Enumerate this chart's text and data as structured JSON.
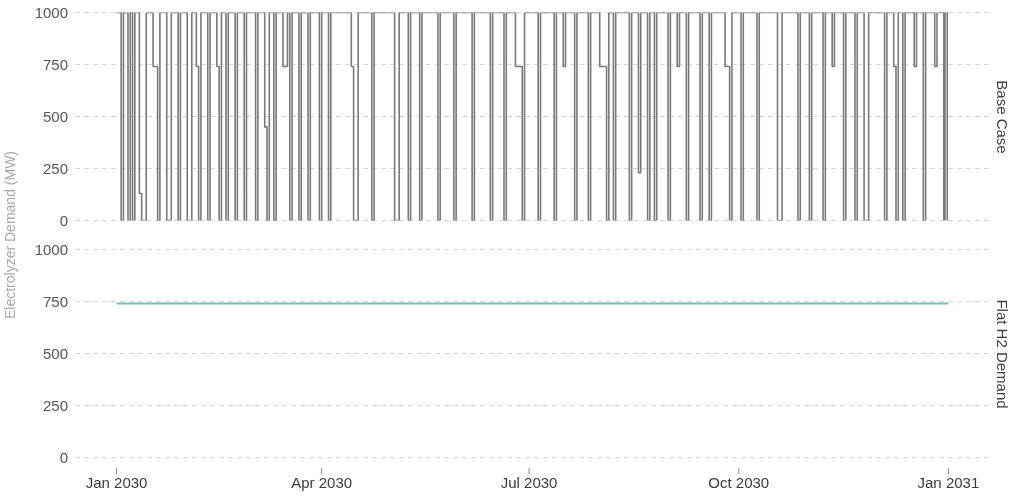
{
  "chart_data": [
    {
      "type": "step",
      "title": "Base Case",
      "ylabel": "Electrolyzer Demand (MW)",
      "color": "#7a7a7a",
      "x": [
        "2030-01-01",
        "2030-01-03",
        "2030-01-04",
        "2030-01-06",
        "2030-01-07",
        "2030-01-08",
        "2030-01-09",
        "2030-01-11",
        "2030-01-12",
        "2030-01-14",
        "2030-01-17",
        "2030-01-19",
        "2030-01-20",
        "2030-01-23",
        "2030-01-25",
        "2030-01-28",
        "2030-01-29",
        "2030-02-01",
        "2030-02-03",
        "2030-02-05",
        "2030-02-06",
        "2030-02-07",
        "2030-02-10",
        "2030-02-11",
        "2030-02-14",
        "2030-02-15",
        "2030-02-16",
        "2030-02-18",
        "2030-02-19",
        "2030-02-22",
        "2030-02-23",
        "2030-02-26",
        "2030-02-27",
        "2030-03-03",
        "2030-03-04",
        "2030-03-07",
        "2030-03-08",
        "2030-03-09",
        "2030-03-11",
        "2030-03-12",
        "2030-03-15",
        "2030-03-17",
        "2030-03-18",
        "2030-03-19",
        "2030-03-22",
        "2030-03-23",
        "2030-03-26",
        "2030-03-27",
        "2030-03-31",
        "2030-04-01",
        "2030-04-04",
        "2030-04-05",
        "2030-04-14",
        "2030-04-15",
        "2030-04-17",
        "2030-04-23",
        "2030-04-24",
        "2030-05-03",
        "2030-05-05",
        "2030-05-09",
        "2030-05-10",
        "2030-05-14",
        "2030-05-15",
        "2030-05-22",
        "2030-05-23",
        "2030-05-29",
        "2030-05-30",
        "2030-06-06",
        "2030-06-07",
        "2030-06-14",
        "2030-06-15",
        "2030-06-20",
        "2030-06-21",
        "2030-06-25",
        "2030-06-28",
        "2030-06-29",
        "2030-07-05",
        "2030-07-06",
        "2030-07-12",
        "2030-07-13",
        "2030-07-16",
        "2030-07-17",
        "2030-07-21",
        "2030-07-22",
        "2030-07-27",
        "2030-07-28",
        "2030-08-01",
        "2030-08-04",
        "2030-08-05",
        "2030-08-07",
        "2030-08-08",
        "2030-08-14",
        "2030-08-15",
        "2030-08-18",
        "2030-08-19",
        "2030-08-22",
        "2030-08-23",
        "2030-08-25",
        "2030-08-26",
        "2030-08-31",
        "2030-09-01",
        "2030-09-04",
        "2030-09-05",
        "2030-09-08",
        "2030-09-09",
        "2030-09-14",
        "2030-09-15",
        "2030-09-18",
        "2030-09-19",
        "2030-09-25",
        "2030-09-27",
        "2030-09-28",
        "2030-10-02",
        "2030-10-03",
        "2030-10-09",
        "2030-10-10",
        "2030-10-18",
        "2030-10-20",
        "2030-10-27",
        "2030-10-28",
        "2030-11-01",
        "2030-11-02",
        "2030-11-07",
        "2030-11-08",
        "2030-11-11",
        "2030-11-12",
        "2030-11-16",
        "2030-11-17",
        "2030-11-21",
        "2030-11-22",
        "2030-11-25",
        "2030-11-27",
        "2030-12-04",
        "2030-12-05",
        "2030-12-08",
        "2030-12-09",
        "2030-12-10",
        "2030-12-12",
        "2030-12-13",
        "2030-12-17",
        "2030-12-18",
        "2030-12-21",
        "2030-12-22",
        "2030-12-26",
        "2030-12-27",
        "2030-12-30",
        "2030-12-30T12:00",
        "2030-12-31T12:00",
        "2030-12-31T23:00"
      ],
      "values": [
        1000,
        0,
        1000,
        0,
        1000,
        0,
        1000,
        130,
        0,
        1000,
        740,
        0,
        1000,
        0,
        1000,
        0,
        1000,
        0,
        1000,
        740,
        0,
        1000,
        0,
        1000,
        740,
        0,
        1000,
        0,
        1000,
        0,
        1000,
        0,
        1000,
        0,
        1000,
        450,
        0,
        1000,
        0,
        1000,
        740,
        1000,
        0,
        1000,
        0,
        1000,
        0,
        1000,
        0,
        1000,
        0,
        1000,
        740,
        0,
        1000,
        0,
        1000,
        0,
        1000,
        0,
        1000,
        0,
        1000,
        0,
        1000,
        0,
        1000,
        0,
        1000,
        0,
        1000,
        0,
        1000,
        740,
        0,
        1000,
        0,
        1000,
        0,
        1000,
        740,
        1000,
        0,
        1000,
        0,
        1000,
        740,
        0,
        1000,
        0,
        1000,
        0,
        1000,
        230,
        1000,
        0,
        1000,
        0,
        1000,
        0,
        1000,
        740,
        1000,
        0,
        1000,
        0,
        1000,
        0,
        1000,
        740,
        0,
        1000,
        0,
        1000,
        0,
        1000,
        0,
        1000,
        0,
        1000,
        0,
        1000,
        0,
        1000,
        740,
        1000,
        0,
        1000,
        0,
        1000,
        0,
        1000,
        0,
        1000,
        740,
        0,
        1000,
        0,
        1000,
        740,
        1000,
        0,
        1000,
        740,
        1000,
        0,
        1000,
        0,
        0
      ],
      "xlim": [
        "2029-12-13T18:00",
        "2031-01-19T06:00"
      ],
      "ylim": [
        0,
        1000
      ],
      "yticks": [
        0,
        250,
        500,
        750,
        1000
      ],
      "grid": "y",
      "tick_labels": "y"
    },
    {
      "type": "line",
      "title": "Flat H2 Demand",
      "color": "#74bcb5",
      "x": [
        "2030-01-01",
        "2030-12-31T23:00"
      ],
      "values": [
        740,
        740
      ],
      "xlim": [
        "2029-12-13T18:00",
        "2031-01-19T06:00"
      ],
      "xticks": [
        {
          "value": "2030-01-01",
          "label": "Jan 2030"
        },
        {
          "value": "2030-04-01",
          "label": "Apr 2030"
        },
        {
          "value": "2030-07-01",
          "label": "Jul 2030"
        },
        {
          "value": "2030-10-01",
          "label": "Oct 2030"
        },
        {
          "value": "2031-01-01",
          "label": "Jan 2031"
        }
      ],
      "ylim": [
        0,
        1000
      ],
      "yticks": [
        0,
        250,
        500,
        750,
        1000
      ],
      "grid": "y"
    }
  ]
}
